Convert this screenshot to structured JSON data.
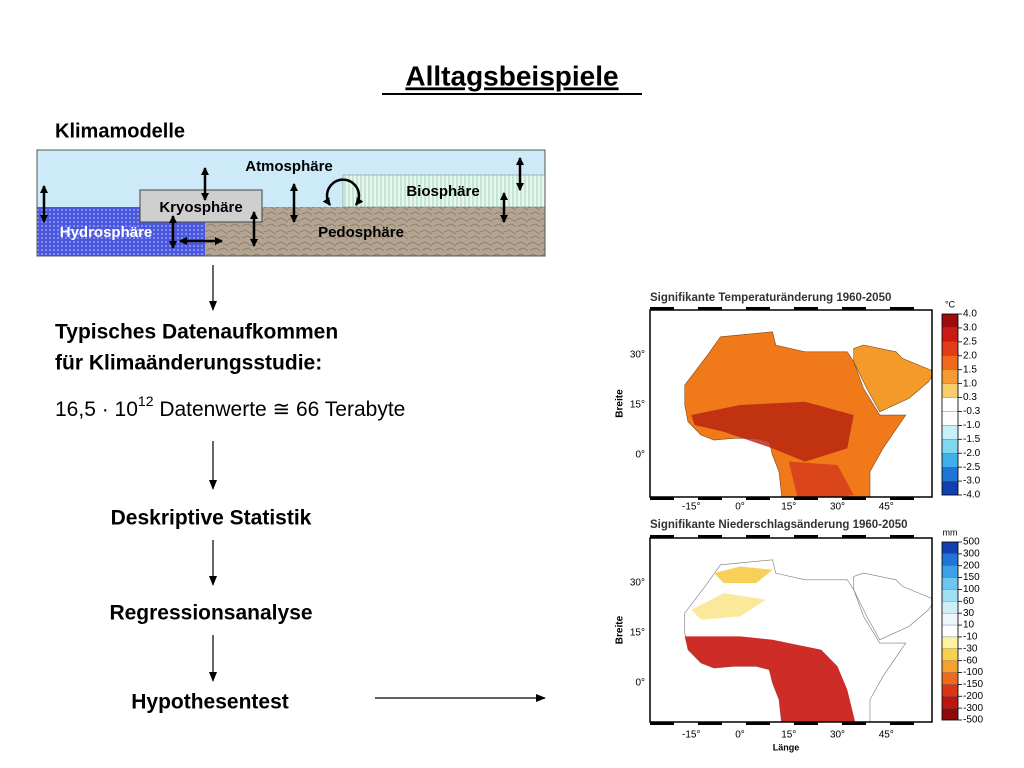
{
  "title": "Alltagsbeispiele",
  "climate_model": {
    "heading": "Klimamodelle",
    "labels": {
      "atmosphere": "Atmosphäre",
      "biosphere": "Biosphäre",
      "cryosphere": "Kryosphäre",
      "hydrosphere": "Hydrosphäre",
      "pedosphere": "Pedosphäre"
    }
  },
  "data_volume": {
    "heading_lines": [
      "Typisches Datenaufkommen",
      "für Klimaänderungsstudie:"
    ],
    "amount": {
      "base": "16,5 · 10",
      "exponent": "12",
      "rest": " Datenwerte ≅ 66 Terabyte"
    }
  },
  "steps": [
    "Deskriptive Statistik",
    "Regressionsanalyse",
    "Hypothesentest"
  ],
  "maps": [
    {
      "title": "Signifikante Temperaturänderung 1960-2050",
      "unit": "°C",
      "y_axis_label": "Breite",
      "yticks": [
        "30°",
        "15°",
        "0°"
      ],
      "xticks": [
        "-15°",
        "0°",
        "15°",
        "30°",
        "45°"
      ],
      "colorbar_labels": [
        "4.0",
        "3.0",
        "2.5",
        "2.0",
        "1.5",
        "1.0",
        "0.3",
        "-0.3",
        "-1.0",
        "-1.5",
        "-2.0",
        "-2.5",
        "-3.0",
        "-4.0"
      ],
      "colorbar_colors": [
        "#9e0d0d",
        "#cc1a12",
        "#e33b17",
        "#f06a1c",
        "#f59a35",
        "#f9cc6a",
        "#ffffff",
        "#ffffff",
        "#c8f0f8",
        "#7fd8f0",
        "#3fb0ea",
        "#1f74d8",
        "#1040b0"
      ]
    },
    {
      "title": "Signifikante Niederschlagsänderung 1960-2050",
      "unit": "mm",
      "y_axis_label": "Breite",
      "x_axis_label": "Länge",
      "yticks": [
        "30°",
        "15°",
        "0°"
      ],
      "xticks": [
        "-15°",
        "0°",
        "15°",
        "30°",
        "45°"
      ],
      "colorbar_labels": [
        "500",
        "300",
        "200",
        "150",
        "100",
        "60",
        "30",
        "10",
        "-10",
        "-30",
        "-60",
        "-100",
        "-150",
        "-200",
        "-300",
        "-500"
      ],
      "colorbar_colors": [
        "#1040b0",
        "#1f74d8",
        "#3fa0e8",
        "#6cc6f0",
        "#a0e0f4",
        "#cfeff8",
        "#eef8fb",
        "#ffffff",
        "#fff2a0",
        "#f9d04a",
        "#f6a030",
        "#ee6a1c",
        "#dd3514",
        "#c0150e",
        "#900808"
      ]
    }
  ]
}
